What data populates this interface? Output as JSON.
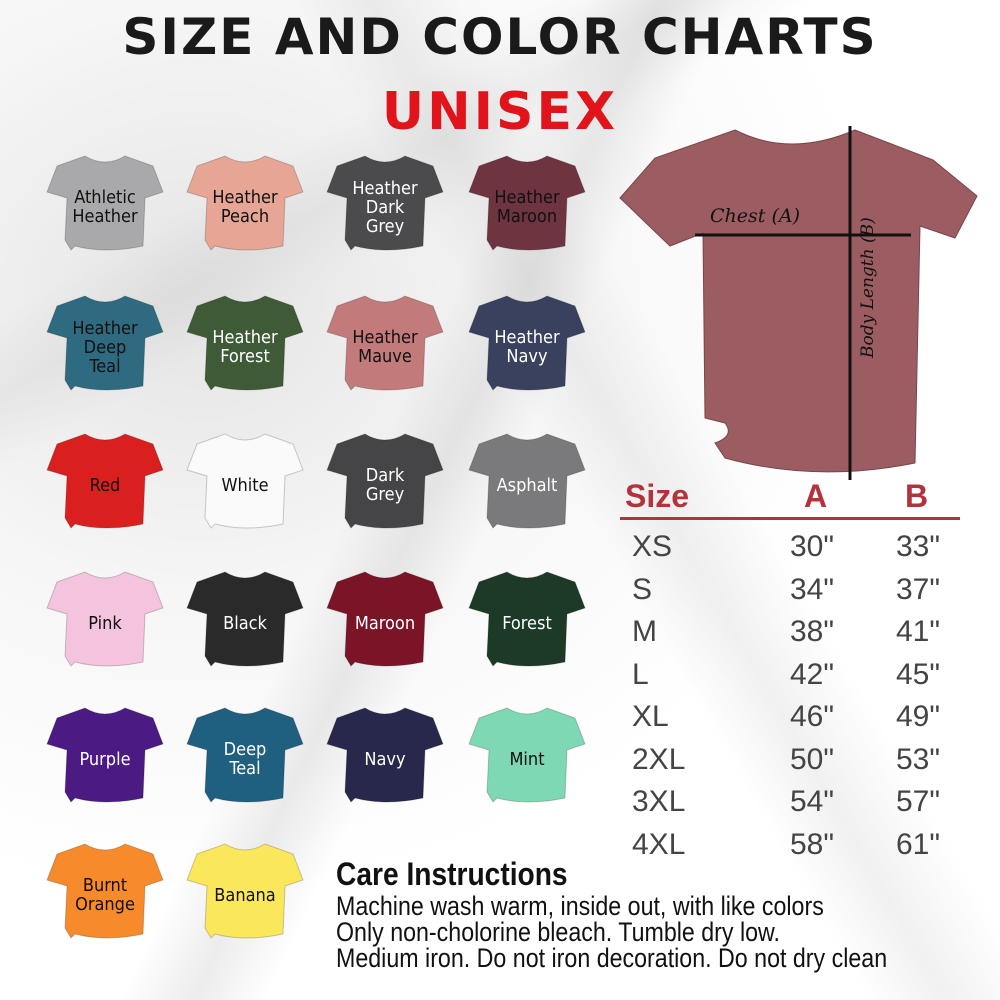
{
  "title": "SIZE AND COLOR CHARTS",
  "subtitle": "UNISEX",
  "colors": [
    {
      "name": "Athletic\nHeather",
      "fill": "#a9a9ab",
      "text": "#111"
    },
    {
      "name": "Heather\nPeach",
      "fill": "#e6a595",
      "text": "#111"
    },
    {
      "name": "Heather\nDark\nGrey",
      "fill": "#4b4b4e",
      "text": "#fff"
    },
    {
      "name": "Heather\nMaroon",
      "fill": "#6e3440",
      "text": "#111"
    },
    {
      "name": "Heather\nDeep\nTeal",
      "fill": "#2f6b80",
      "text": "#111"
    },
    {
      "name": "Heather\nForest",
      "fill": "#3e5a37",
      "text": "#fff"
    },
    {
      "name": "Heather\nMauve",
      "fill": "#c37a7a",
      "text": "#111"
    },
    {
      "name": "Heather\nNavy",
      "fill": "#39415e",
      "text": "#fff"
    },
    {
      "name": "Red",
      "fill": "#d9201e",
      "text": "#111"
    },
    {
      "name": "White",
      "fill": "#fafafa",
      "text": "#111"
    },
    {
      "name": "Dark\nGrey",
      "fill": "#454547",
      "text": "#fff"
    },
    {
      "name": "Asphalt",
      "fill": "#7a7a7c",
      "text": "#fff"
    },
    {
      "name": "Pink",
      "fill": "#f4c3dd",
      "text": "#111"
    },
    {
      "name": "Black",
      "fill": "#2a2a2a",
      "text": "#fff"
    },
    {
      "name": "Maroon",
      "fill": "#7c1428",
      "text": "#fff"
    },
    {
      "name": "Forest",
      "fill": "#1c3a25",
      "text": "#fff"
    },
    {
      "name": "Purple",
      "fill": "#4b1a82",
      "text": "#fff"
    },
    {
      "name": "Deep\nTeal",
      "fill": "#1f5f80",
      "text": "#fff"
    },
    {
      "name": "Navy",
      "fill": "#27284c",
      "text": "#fff"
    },
    {
      "name": "Mint",
      "fill": "#7fd8b4",
      "text": "#111"
    },
    {
      "name": "Burnt\nOrange",
      "fill": "#f78a2b",
      "text": "#111"
    },
    {
      "name": "Banana",
      "fill": "#fae75c",
      "text": "#111"
    }
  ],
  "diagram": {
    "shirt_color": "#9b5d62",
    "chest_label": "Chest (A)",
    "length_label": "Body Length (B)"
  },
  "size_table": {
    "headers": [
      "Size",
      "A",
      "B"
    ],
    "rows": [
      [
        "XS",
        "30\"",
        "33\""
      ],
      [
        "S",
        "34\"",
        "37\""
      ],
      [
        "M",
        "38\"",
        "41\""
      ],
      [
        "L",
        "42\"",
        "45\""
      ],
      [
        "XL",
        "46\"",
        "49\""
      ],
      [
        "2XL",
        "50\"",
        "53\""
      ],
      [
        "3XL",
        "54\"",
        "57\""
      ],
      [
        "4XL",
        "58\"",
        "61\""
      ]
    ]
  },
  "care": {
    "title": "Care Instructions",
    "lines": [
      "Machine wash warm, inside out, with like colors",
      "Only non-cholorine bleach. Tumble dry low.",
      "Medium iron. Do not iron decoration. Do not dry clean"
    ]
  }
}
